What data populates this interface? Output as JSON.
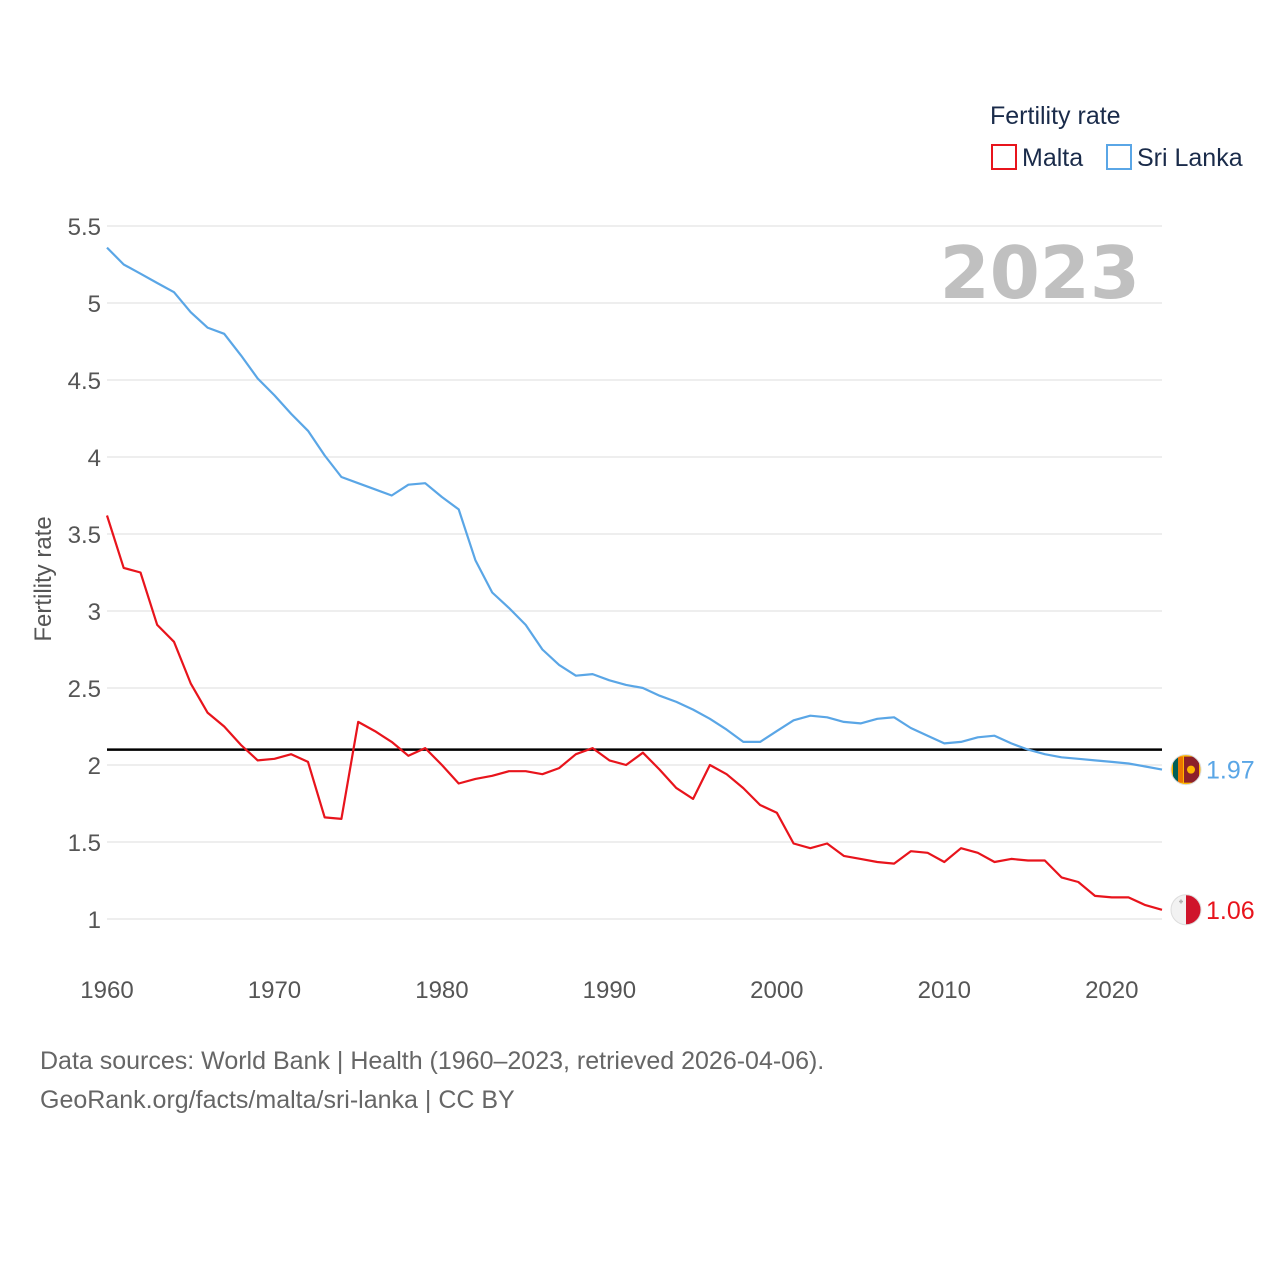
{
  "chart_data": {
    "type": "line",
    "ylabel": "Fertility rate",
    "xlabel": "",
    "ylim": [
      0.75,
      5.5
    ],
    "xlim": [
      1960,
      2023
    ],
    "yticks": [
      1,
      1.5,
      2,
      2.5,
      3,
      3.5,
      4,
      4.5,
      5,
      5.5
    ],
    "ytick_labels": [
      "1",
      "1.5",
      "2",
      "2.5",
      "3",
      "3.5",
      "4",
      "4.5",
      "5",
      "5.5"
    ],
    "xticks": [
      1960,
      1970,
      1980,
      1990,
      2000,
      2010,
      2020
    ],
    "xtick_labels": [
      "1960",
      "1970",
      "1980",
      "1990",
      "2000",
      "2010",
      "2020"
    ],
    "grid": true,
    "reference_line": {
      "y": 2.1,
      "color": "#000000"
    },
    "year_label": "2023",
    "legend": {
      "title": "Fertility rate",
      "position": "top-right"
    },
    "x": [
      1960,
      1961,
      1962,
      1963,
      1964,
      1965,
      1966,
      1967,
      1968,
      1969,
      1970,
      1971,
      1972,
      1973,
      1974,
      1975,
      1976,
      1977,
      1978,
      1979,
      1980,
      1981,
      1982,
      1983,
      1984,
      1985,
      1986,
      1987,
      1988,
      1989,
      1990,
      1991,
      1992,
      1993,
      1994,
      1995,
      1996,
      1997,
      1998,
      1999,
      2000,
      2001,
      2002,
      2003,
      2004,
      2005,
      2006,
      2007,
      2008,
      2009,
      2010,
      2011,
      2012,
      2013,
      2014,
      2015,
      2016,
      2017,
      2018,
      2019,
      2020,
      2021,
      2022,
      2023
    ],
    "series": [
      {
        "name": "Malta",
        "color": "#e8141c",
        "end_label": "1.06",
        "flag": "malta-flag",
        "values": [
          3.62,
          3.28,
          3.25,
          2.91,
          2.8,
          2.53,
          2.34,
          2.25,
          2.13,
          2.03,
          2.04,
          2.07,
          2.02,
          1.66,
          1.65,
          2.28,
          2.22,
          2.15,
          2.06,
          2.11,
          2.0,
          1.88,
          1.91,
          1.93,
          1.96,
          1.96,
          1.94,
          1.98,
          2.07,
          2.11,
          2.03,
          2.0,
          2.08,
          1.97,
          1.85,
          1.78,
          2.0,
          1.94,
          1.85,
          1.74,
          1.69,
          1.49,
          1.46,
          1.49,
          1.41,
          1.39,
          1.37,
          1.36,
          1.44,
          1.43,
          1.37,
          1.46,
          1.43,
          1.37,
          1.39,
          1.38,
          1.38,
          1.27,
          1.24,
          1.15,
          1.14,
          1.14,
          1.09,
          1.06
        ]
      },
      {
        "name": "Sri Lanka",
        "color": "#5aa6e6",
        "end_label": "1.97",
        "flag": "sri-lanka-flag",
        "values": [
          5.36,
          5.25,
          5.19,
          5.13,
          5.07,
          4.94,
          4.84,
          4.8,
          4.66,
          4.51,
          4.4,
          4.28,
          4.17,
          4.01,
          3.87,
          3.83,
          3.79,
          3.75,
          3.82,
          3.83,
          3.74,
          3.66,
          3.33,
          3.12,
          3.02,
          2.91,
          2.75,
          2.65,
          2.58,
          2.59,
          2.55,
          2.52,
          2.5,
          2.45,
          2.41,
          2.36,
          2.3,
          2.23,
          2.15,
          2.15,
          2.22,
          2.29,
          2.32,
          2.31,
          2.28,
          2.27,
          2.3,
          2.31,
          2.24,
          2.19,
          2.14,
          2.15,
          2.18,
          2.19,
          2.14,
          2.1,
          2.07,
          2.05,
          2.04,
          2.03,
          2.02,
          2.01,
          1.99,
          1.97
        ]
      }
    ]
  },
  "source": {
    "line1": "Data sources: World Bank | Health (1960–2023, retrieved 2026-04-06).",
    "line2": "GeoRank.org/facts/malta/sri-lanka | CC BY"
  }
}
